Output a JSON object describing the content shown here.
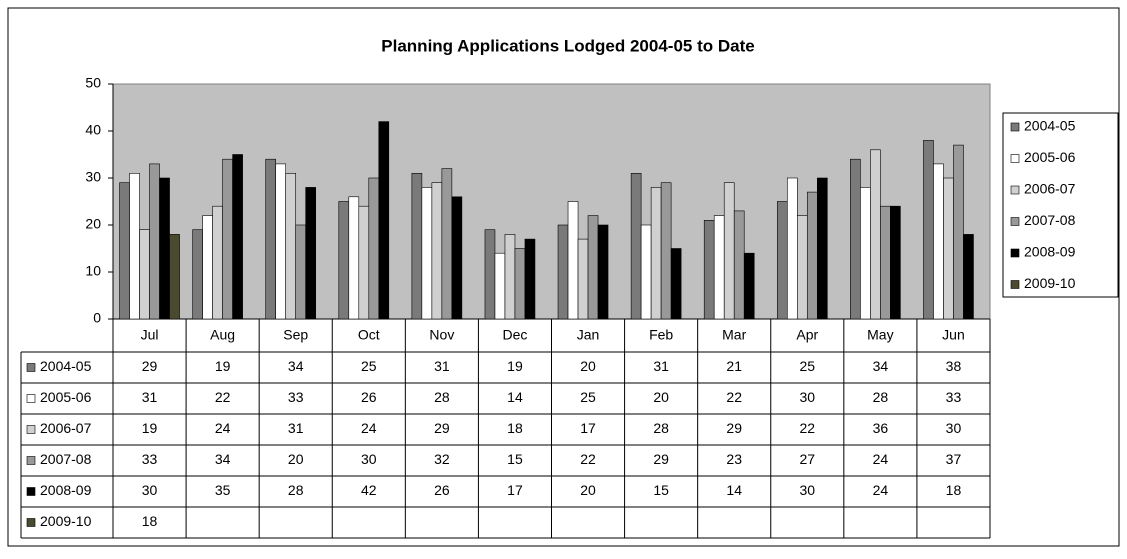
{
  "chart_data": {
    "type": "bar",
    "title": "Planning Applications Lodged 2004-05 to Date",
    "categories": [
      "Jul",
      "Aug",
      "Sep",
      "Oct",
      "Nov",
      "Dec",
      "Jan",
      "Feb",
      "Mar",
      "Apr",
      "May",
      "Jun"
    ],
    "series": [
      {
        "name": "2004-05",
        "color": "#7a7a7a",
        "values": [
          29,
          19,
          34,
          25,
          31,
          19,
          20,
          31,
          21,
          25,
          34,
          38
        ]
      },
      {
        "name": "2005-06",
        "color": "#ffffff",
        "values": [
          31,
          22,
          33,
          26,
          28,
          14,
          25,
          20,
          22,
          30,
          28,
          33
        ]
      },
      {
        "name": "2006-07",
        "color": "#d0d0d0",
        "values": [
          19,
          24,
          31,
          24,
          29,
          18,
          17,
          28,
          29,
          22,
          36,
          30
        ]
      },
      {
        "name": "2007-08",
        "color": "#999999",
        "values": [
          33,
          34,
          20,
          30,
          32,
          15,
          22,
          29,
          23,
          27,
          24,
          37
        ]
      },
      {
        "name": "2008-09",
        "color": "#000000",
        "values": [
          30,
          35,
          28,
          42,
          26,
          17,
          20,
          15,
          14,
          30,
          24,
          18
        ]
      },
      {
        "name": "2009-10",
        "color": "#4a4a30",
        "values": [
          18,
          null,
          null,
          null,
          null,
          null,
          null,
          null,
          null,
          null,
          null,
          null
        ]
      }
    ],
    "ylim": [
      0,
      50
    ],
    "yticks": [
      0,
      10,
      20,
      30,
      40,
      50
    ],
    "legend": "right"
  }
}
